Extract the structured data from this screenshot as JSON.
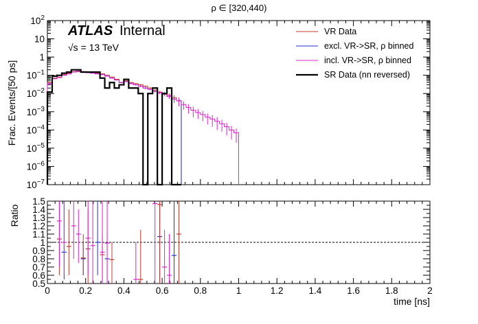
{
  "figure": {
    "title": "ρ ∈ [320,440)",
    "atlas_label": "ATLAS",
    "atlas_sublabel": "Internal",
    "energy_label": "√s = 13 TeV"
  },
  "chart_data": [
    {
      "panel": "main",
      "type": "line",
      "style": "step histogram",
      "xlabel": "",
      "ylabel": "Frac. Events/[50 ps]",
      "xlim": [
        0,
        2
      ],
      "ylim": [
        1e-07,
        100
      ],
      "yscale": "log",
      "x_ticks": [
        0,
        0.2,
        0.4,
        0.6,
        0.8,
        1,
        1.2,
        1.4,
        1.6,
        1.8,
        2
      ],
      "x_tick_labels": [
        "0",
        "0.2",
        "0.4",
        "0.6",
        "0.8",
        "1",
        "1.2",
        "1.4",
        "1.6",
        "1.8",
        "2"
      ],
      "y_ticks": [
        1e-07,
        1e-06,
        1e-05,
        0.0001,
        0.001,
        0.01,
        0.1,
        1,
        10,
        100
      ],
      "y_tick_labels": [
        {
          "base": "10",
          "exp": "−7"
        },
        {
          "base": "10",
          "exp": "−6"
        },
        {
          "base": "10",
          "exp": "−5"
        },
        {
          "base": "10",
          "exp": "−4"
        },
        {
          "base": "10",
          "exp": "−3"
        },
        {
          "base": "10",
          "exp": "−2"
        },
        {
          "base": "10",
          "exp": "−1"
        },
        {
          "base": "1",
          "exp": ""
        },
        {
          "base": "10",
          "exp": ""
        },
        {
          "base": "10",
          "exp": "2"
        }
      ],
      "legend_position": "top-right",
      "series": [
        {
          "name": "VR Data",
          "color": "#c0392b",
          "line_width": 1,
          "bin_width": 0.025,
          "x_start": 0,
          "values": [
            0.04,
            0.07,
            0.08,
            0.11,
            0.13,
            0.16,
            0.17,
            0.16,
            0.15,
            0.14,
            0.13,
            0.12,
            0.1,
            0.08,
            0.06,
            0.04,
            0.05,
            0.04,
            0.035,
            0.03,
            0.025,
            0.02,
            0.015,
            0.012,
            0.01,
            0.008,
            0.006,
            0.004
          ],
          "errors": [
            0.003,
            0.004,
            0.004,
            0.005,
            0.005,
            0.005,
            0.005,
            0.005,
            0.005,
            0.005,
            0.005,
            0.005,
            0.004,
            0.004,
            0.004,
            0.003,
            0.003,
            0.003,
            0.003,
            0.003,
            0.003,
            0.002,
            0.002,
            0.002,
            0.002,
            0.002,
            0.002,
            0.002
          ]
        },
        {
          "name": "excl. VR->SR, ρ binned",
          "color": "#1f2fd6",
          "line_width": 1,
          "bin_width": 0.025,
          "x_start": 0,
          "values": [
            0.035,
            0.065,
            0.075,
            0.1,
            0.12,
            0.15,
            0.16,
            0.15,
            0.14,
            0.13,
            0.12,
            0.11,
            0.09,
            0.07,
            0.055,
            0.04,
            0.045,
            0.035,
            0.03,
            0.025,
            0.02,
            0.017,
            0.013,
            0.011,
            0.009,
            0.007,
            0.005,
            0.004
          ],
          "errors": []
        },
        {
          "name": "incl. VR->SR, ρ binned",
          "color": "#e01fd0",
          "line_width": 1,
          "bin_width": 0.025,
          "x_start": 0,
          "values": [
            0.035,
            0.065,
            0.075,
            0.1,
            0.12,
            0.15,
            0.16,
            0.15,
            0.14,
            0.13,
            0.12,
            0.11,
            0.09,
            0.07,
            0.055,
            0.04,
            0.045,
            0.035,
            0.03,
            0.025,
            0.02,
            0.017,
            0.013,
            0.011,
            0.009,
            0.007,
            0.005,
            0.004,
            0.0025,
            0.0017,
            0.0012,
            0.0009,
            0.0007,
            0.0005,
            0.0004,
            0.0003,
            0.00022,
            0.00015,
            0.0001,
            7e-05
          ],
          "errors": [
            0.003,
            0.004,
            0.004,
            0.005,
            0.005,
            0.005,
            0.005,
            0.005,
            0.005,
            0.005,
            0.005,
            0.005,
            0.004,
            0.004,
            0.004,
            0.003,
            0.003,
            0.003,
            0.003,
            0.003,
            0.003,
            0.002,
            0.002,
            0.002,
            0.002,
            0.002,
            0.002,
            0.002,
            0.0012,
            0.0009,
            0.0007,
            0.0005,
            0.0004,
            0.0003,
            0.00025,
            0.0002,
            0.00014,
            0.0001,
            7e-05,
            5e-05
          ]
        },
        {
          "name": "SR Data (nn reversed)",
          "color": "#000000",
          "line_width": 2.2,
          "bin_width": 0.025,
          "x_start": 0,
          "values": [
            0.012,
            0.09,
            0.1,
            0.13,
            0.15,
            0.2,
            0.2,
            0.15,
            0.15,
            0.15,
            0.15,
            0.07,
            0.02,
            0.04,
            0.02,
            0.03,
            0.06,
            0.02,
            0.02,
            0.01,
            1e-09,
            0.01,
            0.02,
            1e-09,
            0.01,
            0.02,
            1e-09,
            1e-09
          ],
          "errors": []
        }
      ]
    },
    {
      "panel": "ratio",
      "type": "scatter",
      "xlabel": "time [ns]",
      "ylabel": "Ratio",
      "xlim": [
        0,
        2
      ],
      "ylim": [
        0.5,
        1.5
      ],
      "reference_line": 1,
      "x_ticks": [
        0,
        0.2,
        0.4,
        0.6,
        0.8,
        1,
        1.2,
        1.4,
        1.6,
        1.8,
        2
      ],
      "x_tick_labels": [
        "0",
        "0.2",
        "0.4",
        "0.6",
        "0.8",
        "1",
        "1.2",
        "1.4",
        "1.6",
        "1.8",
        "2"
      ],
      "y_ticks": [
        0.5,
        0.6,
        0.7,
        0.8,
        0.9,
        1,
        1.1,
        1.2,
        1.3,
        1.4,
        1.5
      ],
      "y_tick_labels": [
        "0.5",
        "0.6",
        "0.7",
        "0.8",
        "0.9",
        "1",
        "1.1",
        "1.2",
        "1.3",
        "1.4",
        "1.5"
      ],
      "series": [
        {
          "name": "",
          "color": "#1f2fd6",
          "points": [
            {
              "x": 0.0875,
              "y": 0.88,
              "ylo": 0.55,
              "yhi": 1.5
            },
            {
              "x": 0.1875,
              "y": 0.8,
              "ylo": 0.6,
              "yhi": 1.0
            },
            {
              "x": 0.2625,
              "y": 1.0,
              "ylo": 0.6,
              "yhi": 1.5
            },
            {
              "x": 0.3125,
              "y": 0.8,
              "ylo": 0.5,
              "yhi": 1.1
            },
            {
              "x": 0.5875,
              "y": 1.07,
              "ylo": 0.5,
              "yhi": 1.5
            },
            {
              "x": 0.6625,
              "y": 0.84,
              "ylo": 0.5,
              "yhi": 1.5
            }
          ]
        },
        {
          "name": "",
          "color": "#c0392b",
          "points": [
            {
              "x": 0.0625,
              "y": 1.04,
              "ylo": 0.6,
              "yhi": 1.5
            },
            {
              "x": 0.1125,
              "y": 0.95,
              "ylo": 0.6,
              "yhi": 1.4
            },
            {
              "x": 0.1875,
              "y": 0.81,
              "ylo": 0.6,
              "yhi": 1.1
            },
            {
              "x": 0.2125,
              "y": 0.92,
              "ylo": 0.5,
              "yhi": 1.4
            },
            {
              "x": 0.2875,
              "y": 0.85,
              "ylo": 0.5,
              "yhi": 1.1
            },
            {
              "x": 0.3375,
              "y": 0.79,
              "ylo": 0.5,
              "yhi": 1.0
            },
            {
              "x": 0.4875,
              "y": 0.55,
              "ylo": 0.5,
              "yhi": 1.15
            },
            {
              "x": 0.5875,
              "y": 1.46,
              "ylo": 0.5,
              "yhi": 1.5
            },
            {
              "x": 0.6875,
              "y": 1.1,
              "ylo": 0.5,
              "yhi": 1.5
            }
          ]
        },
        {
          "name": "",
          "color": "#e01fd0",
          "points": [
            {
              "x": 0.0625,
              "y": 1.26,
              "ylo": 0.7,
              "yhi": 1.5
            },
            {
              "x": 0.0875,
              "y": 1.0,
              "ylo": 0.6,
              "yhi": 1.5
            },
            {
              "x": 0.1375,
              "y": 1.2,
              "ylo": 0.8,
              "yhi": 1.5
            },
            {
              "x": 0.1625,
              "y": 1.1,
              "ylo": 0.75,
              "yhi": 1.4
            },
            {
              "x": 0.2125,
              "y": 1.05,
              "ylo": 0.6,
              "yhi": 1.5
            },
            {
              "x": 0.2375,
              "y": 0.96,
              "ylo": 0.5,
              "yhi": 1.5
            },
            {
              "x": 0.2875,
              "y": 0.88,
              "ylo": 0.5,
              "yhi": 1.5
            },
            {
              "x": 0.3125,
              "y": 0.99,
              "ylo": 0.5,
              "yhi": 1.5
            },
            {
              "x": 0.4625,
              "y": 0.55,
              "ylo": 0.5,
              "yhi": 1.0
            },
            {
              "x": 0.5625,
              "y": 1.47,
              "ylo": 0.5,
              "yhi": 1.5
            },
            {
              "x": 0.6125,
              "y": 0.7,
              "ylo": 0.5,
              "yhi": 1.15
            },
            {
              "x": 0.6375,
              "y": 0.6,
              "ylo": 0.5,
              "yhi": 1.1
            }
          ]
        }
      ]
    }
  ]
}
